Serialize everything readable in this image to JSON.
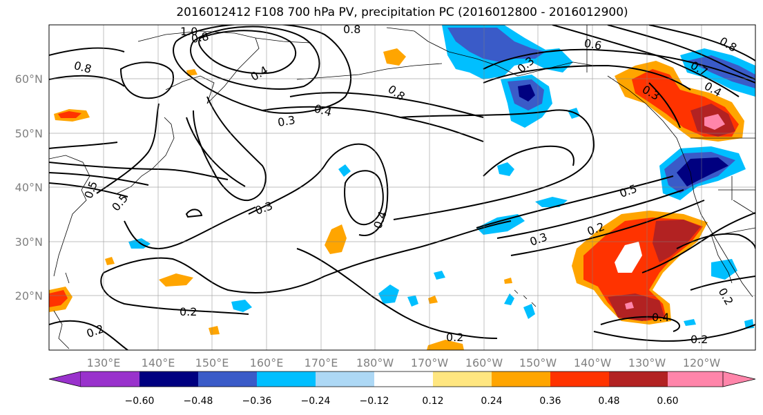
{
  "title": "2016012412 F108 700 hPa PV, precipitation PC (2016012800 - 2016012900)",
  "lon_labels": [
    "130°E",
    "140°E",
    "150°E",
    "160°E",
    "170°E",
    "180°W",
    "170°W",
    "160°W",
    "150°W",
    "140°W",
    "130°W",
    "120°W"
  ],
  "lat_labels": [
    "60°N",
    "50°N",
    "40°N",
    "30°N",
    "20°N"
  ],
  "colorbar": {
    "levels": [
      -0.6,
      -0.48,
      -0.36,
      -0.24,
      -0.12,
      0.12,
      0.24,
      0.36,
      0.48,
      0.6
    ],
    "tick_labels": [
      "−0.60",
      "−0.48",
      "−0.36",
      "−0.24",
      "−0.12",
      "0.12",
      "0.24",
      "0.36",
      "0.48",
      "0.60"
    ],
    "colors": [
      "#9932CC",
      "#000080",
      "#3A5BC8",
      "#00BFFF",
      "#ADD8F5",
      "#FFFFFF",
      "#FFE680",
      "#FFA500",
      "#FF3300",
      "#B22222",
      "#FF85AA"
    ]
  },
  "contour_labels": [
    {
      "text": "1.0"
    },
    {
      "text": "0.8"
    },
    {
      "text": "0.8"
    },
    {
      "text": "0.8"
    },
    {
      "text": "0.4"
    },
    {
      "text": "0.8"
    },
    {
      "text": "0.4"
    },
    {
      "text": "0.3"
    },
    {
      "text": "0.3"
    },
    {
      "text": "0.4"
    },
    {
      "text": "0.5"
    },
    {
      "text": "0.5"
    },
    {
      "text": "0.3"
    },
    {
      "text": "0.2"
    },
    {
      "text": "0.2"
    },
    {
      "text": "0.2"
    },
    {
      "text": "0.2"
    },
    {
      "text": "0.4"
    },
    {
      "text": "0.2"
    },
    {
      "text": "0.2"
    },
    {
      "text": "0.6"
    },
    {
      "text": "0.3"
    },
    {
      "text": "0.3"
    },
    {
      "text": "0.7"
    },
    {
      "text": "0.4"
    },
    {
      "text": "0.8"
    },
    {
      "text": "0.5"
    }
  ]
}
